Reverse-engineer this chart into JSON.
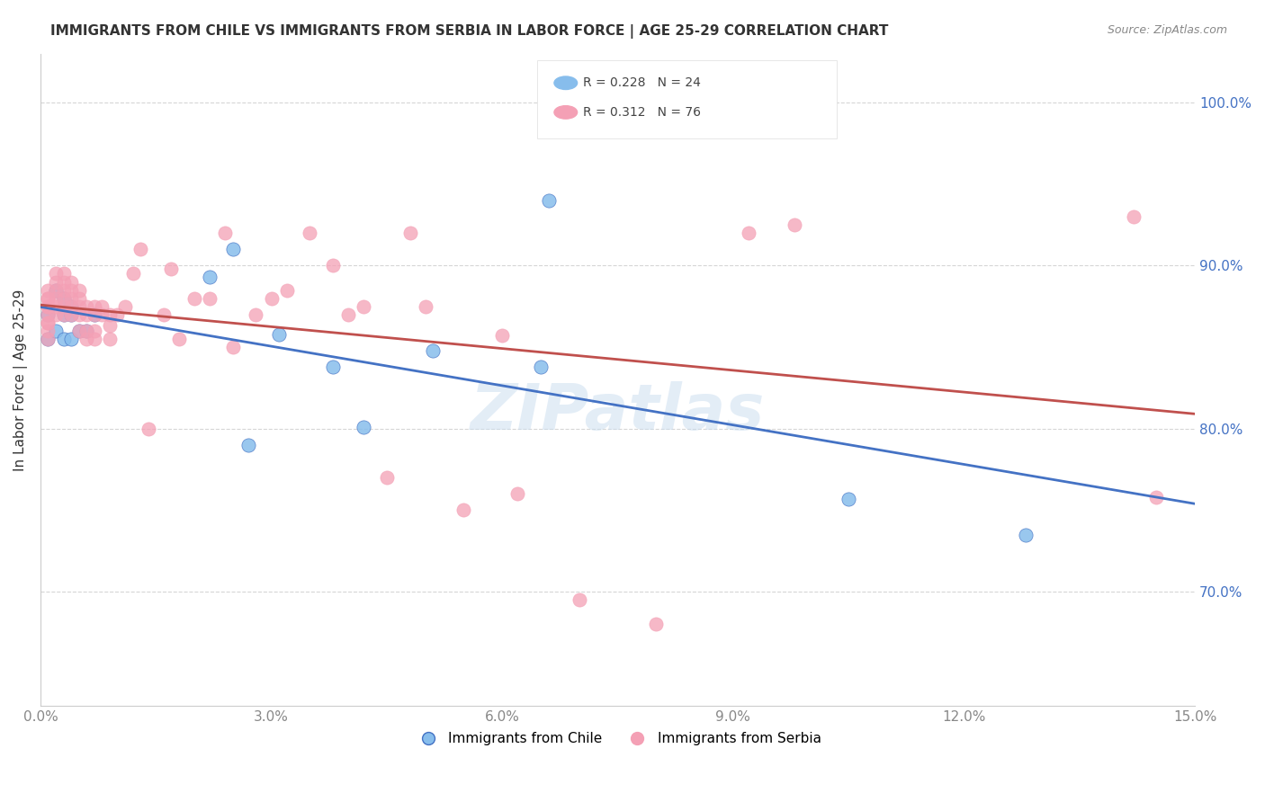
{
  "title": "IMMIGRANTS FROM CHILE VS IMMIGRANTS FROM SERBIA IN LABOR FORCE | AGE 25-29 CORRELATION CHART",
  "source": "Source: ZipAtlas.com",
  "xlabel_bottom": "",
  "ylabel": "In Labor Force | Age 25-29",
  "x_min": 0.0,
  "x_max": 0.15,
  "y_min": 0.63,
  "y_max": 1.03,
  "yticks": [
    0.7,
    0.8,
    0.9,
    1.0
  ],
  "xticks": [
    0.0,
    0.03,
    0.06,
    0.09,
    0.12,
    0.15
  ],
  "legend_chile": "Immigrants from Chile",
  "legend_serbia": "Immigrants from Serbia",
  "R_chile": 0.228,
  "N_chile": 24,
  "R_serbia": 0.312,
  "N_serbia": 76,
  "color_chile": "#87BDEC",
  "color_serbia": "#F4A0B5",
  "line_color_chile": "#4472C4",
  "line_color_serbia": "#C0504D",
  "watermark": "ZIPatlas",
  "chile_x": [
    0.001,
    0.001,
    0.002,
    0.002,
    0.003,
    0.003,
    0.003,
    0.004,
    0.004,
    0.004,
    0.005,
    0.006,
    0.007,
    0.022,
    0.025,
    0.027,
    0.031,
    0.038,
    0.042,
    0.051,
    0.065,
    0.066,
    0.105,
    0.128
  ],
  "chile_y": [
    0.855,
    0.87,
    0.86,
    0.885,
    0.855,
    0.87,
    0.88,
    0.855,
    0.87,
    0.875,
    0.86,
    0.86,
    0.87,
    0.893,
    0.91,
    0.79,
    0.858,
    0.838,
    0.801,
    0.848,
    0.838,
    0.94,
    0.757,
    0.735
  ],
  "serbia_x": [
    0.001,
    0.001,
    0.001,
    0.001,
    0.001,
    0.001,
    0.001,
    0.001,
    0.001,
    0.001,
    0.002,
    0.002,
    0.002,
    0.002,
    0.002,
    0.002,
    0.003,
    0.003,
    0.003,
    0.003,
    0.003,
    0.003,
    0.004,
    0.004,
    0.004,
    0.004,
    0.004,
    0.005,
    0.005,
    0.005,
    0.005,
    0.005,
    0.006,
    0.006,
    0.006,
    0.006,
    0.007,
    0.007,
    0.007,
    0.007,
    0.008,
    0.008,
    0.009,
    0.009,
    0.009,
    0.01,
    0.011,
    0.012,
    0.013,
    0.014,
    0.016,
    0.017,
    0.018,
    0.02,
    0.022,
    0.024,
    0.025,
    0.028,
    0.03,
    0.032,
    0.035,
    0.038,
    0.04,
    0.042,
    0.045,
    0.048,
    0.05,
    0.055,
    0.06,
    0.062,
    0.07,
    0.08,
    0.092,
    0.098,
    0.142,
    0.145
  ],
  "serbia_y": [
    0.855,
    0.86,
    0.865,
    0.87,
    0.875,
    0.88,
    0.885,
    0.88,
    0.875,
    0.865,
    0.87,
    0.875,
    0.88,
    0.885,
    0.89,
    0.895,
    0.87,
    0.875,
    0.88,
    0.885,
    0.89,
    0.895,
    0.87,
    0.875,
    0.88,
    0.885,
    0.89,
    0.86,
    0.87,
    0.875,
    0.88,
    0.885,
    0.855,
    0.86,
    0.87,
    0.875,
    0.855,
    0.86,
    0.87,
    0.875,
    0.87,
    0.875,
    0.855,
    0.863,
    0.87,
    0.87,
    0.875,
    0.895,
    0.91,
    0.8,
    0.87,
    0.898,
    0.855,
    0.88,
    0.88,
    0.92,
    0.85,
    0.87,
    0.88,
    0.885,
    0.92,
    0.9,
    0.87,
    0.875,
    0.77,
    0.92,
    0.875,
    0.75,
    0.857,
    0.76,
    0.695,
    0.68,
    0.92,
    0.925,
    0.93,
    0.758
  ]
}
